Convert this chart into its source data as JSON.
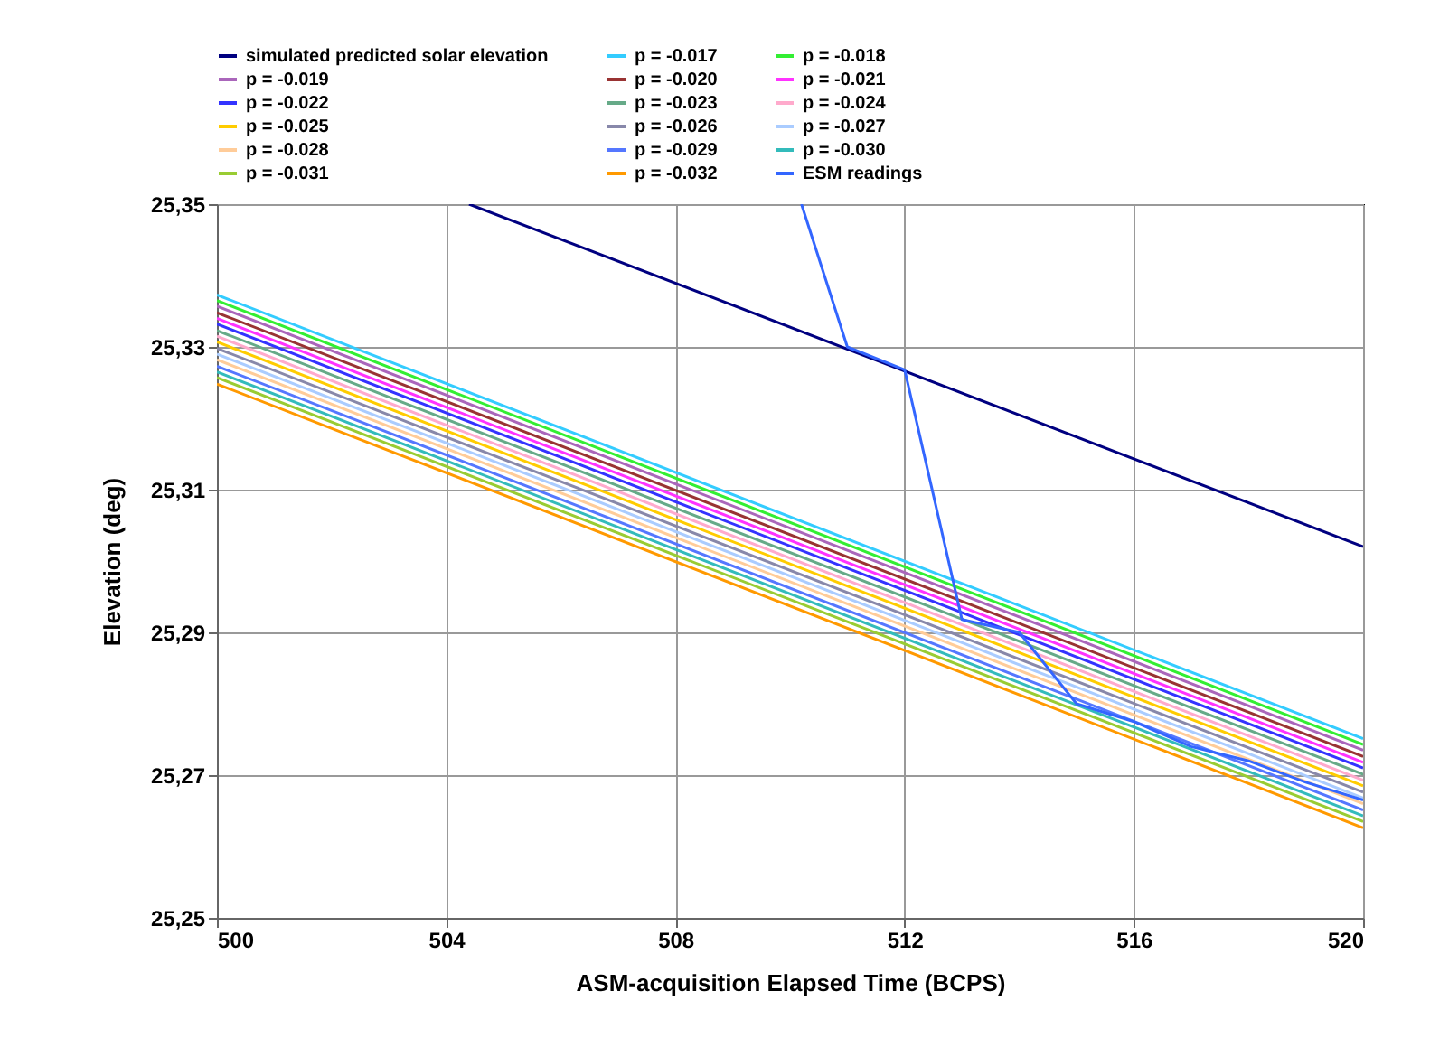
{
  "chart_data": {
    "type": "line",
    "xlabel": "ASM-acquisition Elapsed Time  (BCPS)",
    "ylabel": "Elevation (deg)",
    "xlim": [
      500,
      520
    ],
    "xticks": [
      500,
      504,
      508,
      512,
      516,
      520
    ],
    "ylim": [
      25.25,
      25.35
    ],
    "yticks": [
      {
        "value": 25.25,
        "label": "25,25"
      },
      {
        "value": 25.27,
        "label": "25,27"
      },
      {
        "value": 25.29,
        "label": "25,29"
      },
      {
        "value": 25.31,
        "label": "25,31"
      },
      {
        "value": 25.33,
        "label": "25,33"
      },
      {
        "value": 25.35,
        "label": "25,35"
      }
    ],
    "grid": true,
    "legend": "top",
    "marker": "none",
    "line_style": "solid",
    "series": [
      {
        "name": "simulated predicted solar elevation",
        "color": "#000080",
        "x": [
          504.4,
          520
        ],
        "values": [
          25.35,
          25.302
        ]
      },
      {
        "name": "p = -0.017",
        "color": "#33ccff",
        "x": [
          500,
          520
        ],
        "values": [
          25.3373,
          25.2751
        ]
      },
      {
        "name": "p = -0.018",
        "color": "#33ee33",
        "x": [
          500,
          520
        ],
        "values": [
          25.3365,
          25.2743
        ]
      },
      {
        "name": "p = -0.019",
        "color": "#aa66bb",
        "x": [
          500,
          520
        ],
        "values": [
          25.3357,
          25.2735
        ]
      },
      {
        "name": "p = -0.020",
        "color": "#993333",
        "x": [
          500,
          520
        ],
        "values": [
          25.3348,
          25.2726
        ]
      },
      {
        "name": "p = -0.021",
        "color": "#ff33ff",
        "x": [
          500,
          520
        ],
        "values": [
          25.334,
          25.2718
        ]
      },
      {
        "name": "p = -0.022",
        "color": "#3333ff",
        "x": [
          500,
          520
        ],
        "values": [
          25.3332,
          25.271
        ]
      },
      {
        "name": "p = -0.023",
        "color": "#66aa88",
        "x": [
          500,
          520
        ],
        "values": [
          25.3323,
          25.2701
        ]
      },
      {
        "name": "p = -0.024",
        "color": "#ffaacc",
        "x": [
          500,
          520
        ],
        "values": [
          25.3315,
          25.2693
        ]
      },
      {
        "name": "p = -0.025",
        "color": "#ffcc00",
        "x": [
          500,
          520
        ],
        "values": [
          25.3307,
          25.2685
        ]
      },
      {
        "name": "p = -0.026",
        "color": "#8888aa",
        "x": [
          500,
          520
        ],
        "values": [
          25.3298,
          25.2676
        ]
      },
      {
        "name": "p = -0.027",
        "color": "#aaccff",
        "x": [
          500,
          520
        ],
        "values": [
          25.329,
          25.2668
        ]
      },
      {
        "name": "p = -0.028",
        "color": "#ffcc99",
        "x": [
          500,
          520
        ],
        "values": [
          25.3282,
          25.266
        ]
      },
      {
        "name": "p = -0.029",
        "color": "#5577ff",
        "x": [
          500,
          520
        ],
        "values": [
          25.3273,
          25.2651
        ]
      },
      {
        "name": "p = -0.030",
        "color": "#33bbbb",
        "x": [
          500,
          520
        ],
        "values": [
          25.3265,
          25.2643
        ]
      },
      {
        "name": "p = -0.031",
        "color": "#99cc33",
        "x": [
          500,
          520
        ],
        "values": [
          25.3257,
          25.2635
        ]
      },
      {
        "name": "p = -0.032",
        "color": "#ff9900",
        "x": [
          500,
          520
        ],
        "values": [
          25.3248,
          25.2626
        ]
      },
      {
        "name": "ESM readings",
        "color": "#3366ff",
        "x": [
          510.2,
          511,
          512,
          513,
          514,
          515,
          516,
          517,
          518,
          519,
          520
        ],
        "values": [
          25.35,
          25.33,
          25.3268,
          25.2918,
          25.29,
          25.28,
          25.2775,
          25.274,
          25.272,
          25.269,
          25.2665
        ]
      }
    ]
  }
}
